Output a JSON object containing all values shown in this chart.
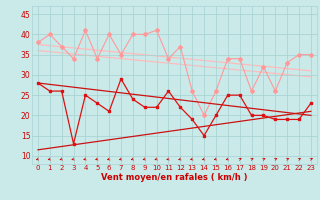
{
  "background_color": "#caeaea",
  "grid_color": "#aad4d4",
  "xlabel": "Vent moyen/en rafales ( km/h )",
  "xlim": [
    -0.5,
    23.5
  ],
  "ylim": [
    8,
    47
  ],
  "yticks": [
    10,
    15,
    20,
    25,
    30,
    35,
    40,
    45
  ],
  "xticks": [
    0,
    1,
    2,
    3,
    4,
    5,
    6,
    7,
    8,
    9,
    10,
    11,
    12,
    13,
    14,
    15,
    16,
    17,
    18,
    19,
    20,
    21,
    22,
    23
  ],
  "jagged_upper_x": [
    0,
    1,
    2,
    3,
    4,
    5,
    6,
    7,
    8,
    9,
    10,
    11,
    12,
    13,
    14,
    15,
    16,
    17,
    18,
    19,
    20,
    21,
    22,
    23
  ],
  "jagged_upper_y": [
    38,
    40,
    37,
    34,
    41,
    34,
    40,
    35,
    40,
    40,
    41,
    34,
    37,
    26,
    20,
    26,
    34,
    34,
    26,
    32,
    26,
    33,
    35,
    35
  ],
  "jagged_upper_color": "#ff9999",
  "trend1_x": [
    0,
    23
  ],
  "trend1_y": [
    37.5,
    31.0
  ],
  "trend2_x": [
    0,
    23
  ],
  "trend2_y": [
    36.0,
    29.5
  ],
  "trend_light_color": "#ffbbbb",
  "jagged_lower_x": [
    0,
    1,
    2,
    3,
    4,
    5,
    6,
    7,
    8,
    9,
    10,
    11,
    12,
    13,
    14,
    15,
    16,
    17,
    18,
    19,
    20,
    21,
    22,
    23
  ],
  "jagged_lower_y": [
    28,
    26,
    26,
    13,
    25,
    23,
    21,
    29,
    24,
    22,
    22,
    26,
    22,
    19,
    15,
    20,
    25,
    25,
    20,
    20,
    19,
    19,
    19,
    23
  ],
  "jagged_lower_color": "#dd1111",
  "trend3_x": [
    0,
    23
  ],
  "trend3_y": [
    28.0,
    20.0
  ],
  "trend4_x": [
    0,
    23
  ],
  "trend4_y": [
    11.5,
    21.0
  ],
  "trend_dark_color": "#cc1111",
  "tick_color": "#cc0000",
  "xlabel_color": "#cc0000",
  "wind_dirs": [
    225,
    225,
    225,
    225,
    225,
    225,
    225,
    225,
    225,
    225,
    225,
    225,
    225,
    225,
    225,
    225,
    225,
    45,
    45,
    45,
    45,
    45,
    45,
    45
  ]
}
